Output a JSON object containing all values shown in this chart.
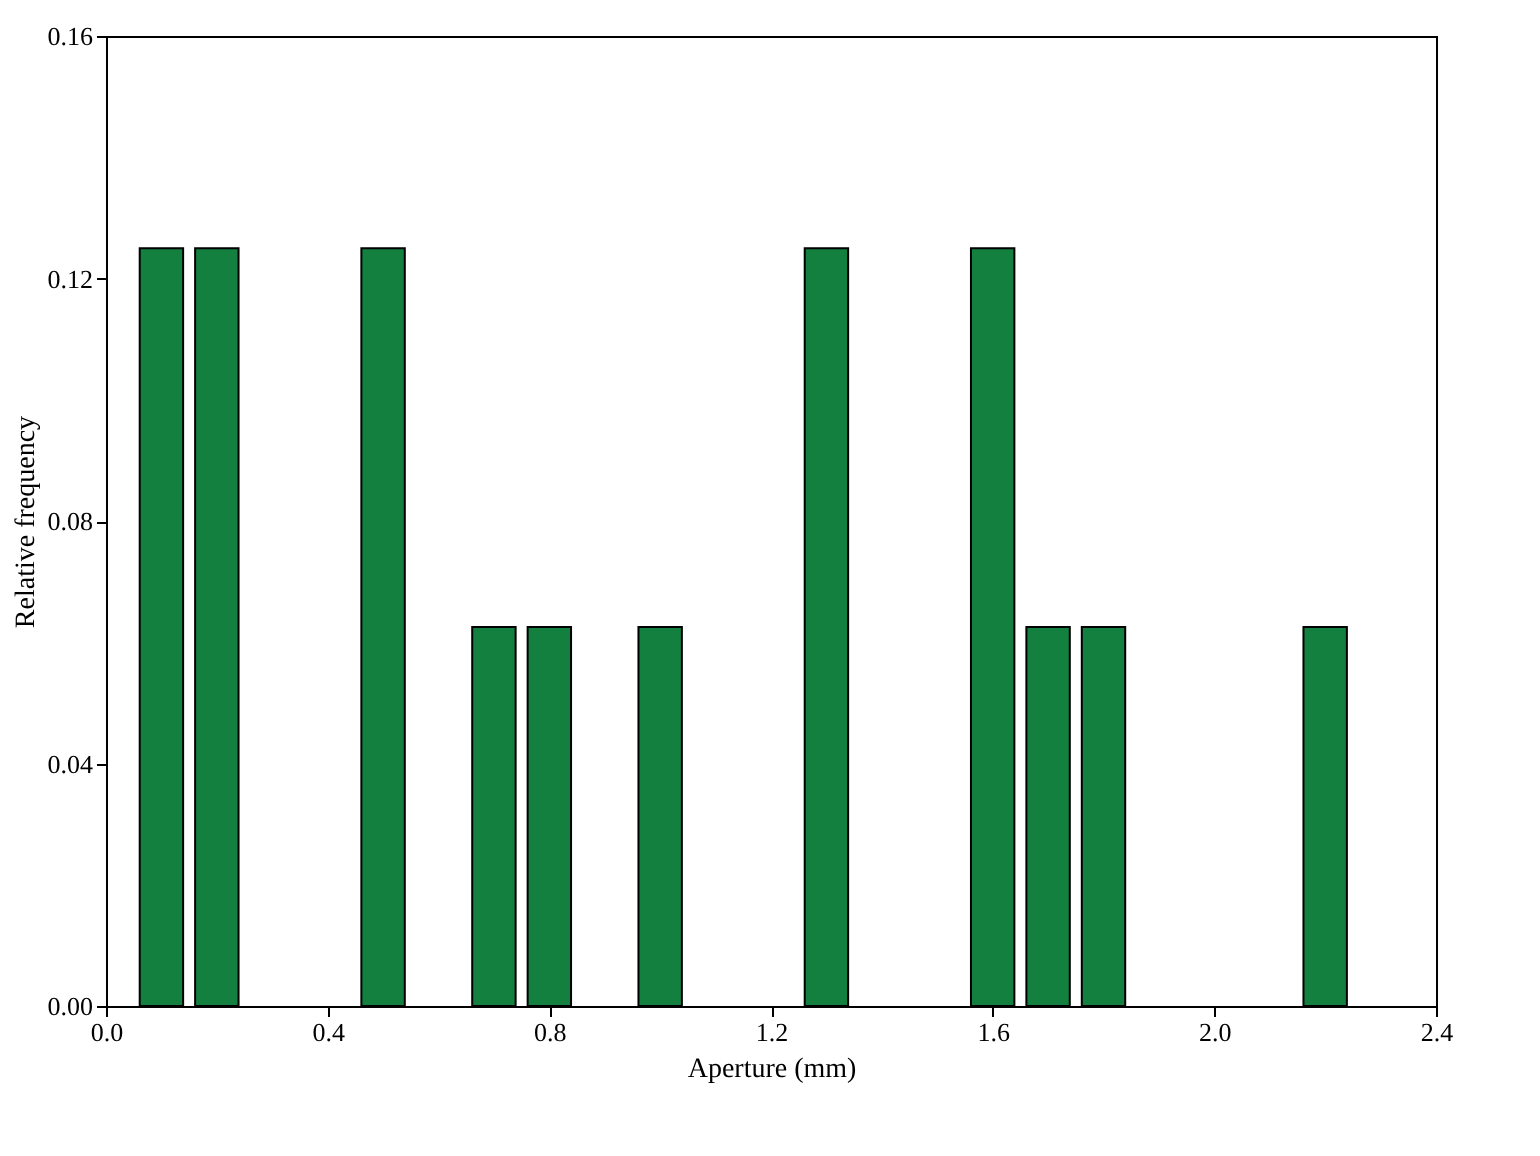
{
  "chart_data": {
    "type": "histogram",
    "xlabel": "Aperture (mm)",
    "ylabel": "Relative frequency",
    "bins": [
      0.05,
      0.15,
      0.25,
      0.35,
      0.45,
      0.55,
      0.65,
      0.75,
      0.85,
      0.95,
      1.05,
      1.15,
      1.25,
      1.35,
      1.45,
      1.55,
      1.65,
      1.75,
      1.85,
      1.95,
      2.05,
      2.15,
      2.25
    ],
    "values": [
      0.125,
      0.125,
      0,
      0,
      0.125,
      0,
      0.0625,
      0.0625,
      0,
      0.0625,
      0,
      0,
      0.125,
      0,
      0,
      0.125,
      0.0625,
      0.0625,
      0,
      0,
      0,
      0.0625
    ],
    "color": "#138040",
    "xlim": [
      0.0,
      2.4
    ],
    "xticks": [
      {
        "value": 0,
        "label": "0.0"
      },
      0.4,
      0.8,
      1.2,
      1.6,
      {
        "value": 2,
        "label": "2.0"
      },
      2.4
    ],
    "ylim": [
      0.0,
      0.16
    ],
    "yticks": [
      {
        "value": 0,
        "label": "0.00"
      },
      0.04,
      0.08,
      0.12,
      0.16
    ],
    "grid": false
  }
}
